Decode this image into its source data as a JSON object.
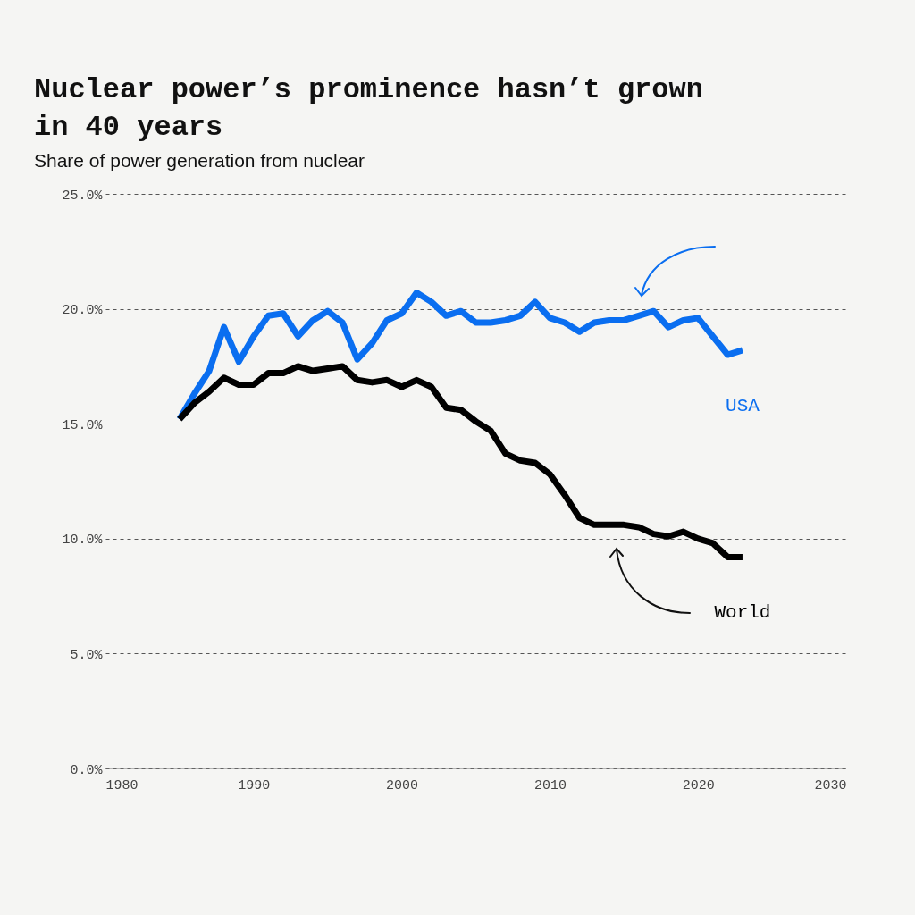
{
  "chart_data": {
    "type": "line",
    "title": "Nuclear power’s prominence hasn’t grown in 40 years",
    "subtitle": "Share of power generation from nuclear",
    "x": [
      1985,
      1986,
      1987,
      1988,
      1989,
      1990,
      1991,
      1992,
      1993,
      1994,
      1995,
      1996,
      1997,
      1998,
      1999,
      2000,
      2001,
      2002,
      2003,
      2004,
      2005,
      2006,
      2007,
      2008,
      2009,
      2010,
      2011,
      2012,
      2013,
      2014,
      2015,
      2016,
      2017,
      2018,
      2019,
      2020,
      2021,
      2022,
      2023
    ],
    "series": [
      {
        "name": "USA",
        "color": "#0a6ef0",
        "values": [
          15.2,
          16.3,
          17.3,
          19.2,
          17.7,
          18.8,
          19.7,
          19.8,
          18.8,
          19.5,
          19.9,
          19.4,
          17.8,
          18.5,
          19.5,
          19.8,
          20.7,
          20.3,
          19.7,
          19.9,
          19.4,
          19.4,
          19.5,
          19.7,
          20.3,
          19.6,
          19.4,
          19.0,
          19.4,
          19.5,
          19.5,
          19.7,
          19.9,
          19.2,
          19.5,
          19.6,
          18.8,
          18.0,
          18.2
        ]
      },
      {
        "name": "World",
        "color": "#000000",
        "values": [
          15.2,
          15.9,
          16.4,
          17.0,
          16.7,
          16.7,
          17.2,
          17.2,
          17.5,
          17.3,
          17.4,
          17.5,
          16.9,
          16.8,
          16.9,
          16.6,
          16.9,
          16.6,
          15.7,
          15.6,
          15.1,
          14.7,
          13.7,
          13.4,
          13.3,
          12.8,
          11.9,
          10.9,
          10.6,
          10.6,
          10.6,
          10.5,
          10.2,
          10.1,
          10.3,
          10.0,
          9.8,
          9.2,
          9.2
        ]
      }
    ],
    "xlim": [
      1980,
      2030
    ],
    "xticks": [
      1980,
      1990,
      2000,
      2010,
      2020,
      2030
    ],
    "ylim": [
      0,
      25
    ],
    "yticks": [
      {
        "value": 0,
        "label": "0.0%"
      },
      {
        "value": 5,
        "label": "5.0%"
      },
      {
        "value": 10,
        "label": "10.0%"
      },
      {
        "value": 15,
        "label": "15.0%"
      },
      {
        "value": 20,
        "label": "20.0%"
      },
      {
        "value": 25,
        "label": "25.0%"
      }
    ],
    "grid": "y",
    "legend": false,
    "line_style": "solid",
    "marker": "none"
  }
}
